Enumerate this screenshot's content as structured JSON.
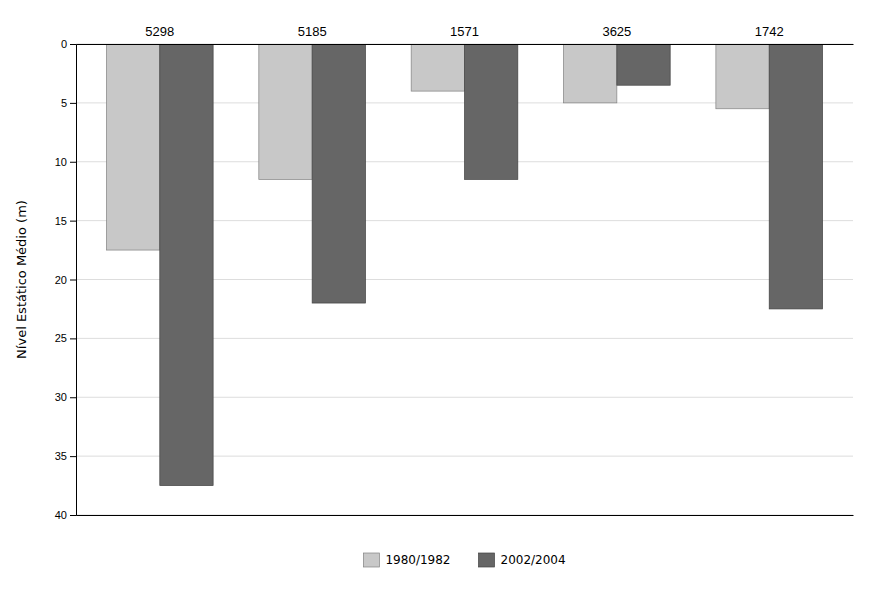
{
  "chart_data": {
    "type": "bar",
    "y_label": "Nível Estático Médio (m)",
    "categories": [
      "5298",
      "5185",
      "1571",
      "3625",
      "1742"
    ],
    "series": [
      {
        "name": "1980/1982",
        "color": "#c8c8c8",
        "values": [
          17.5,
          11.5,
          4.0,
          5.0,
          5.5
        ]
      },
      {
        "name": "2002/2004",
        "color": "#666666",
        "values": [
          37.5,
          22.0,
          11.5,
          3.5,
          22.5
        ]
      }
    ],
    "ylim": [
      0,
      40
    ],
    "yticks": [
      0,
      5,
      10,
      15,
      20,
      25,
      30,
      35,
      40
    ],
    "grid": true,
    "legend": "bottom"
  }
}
